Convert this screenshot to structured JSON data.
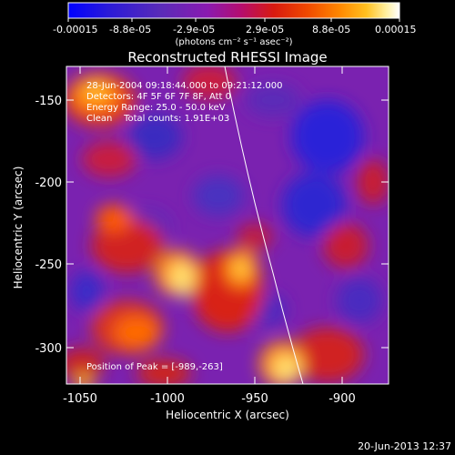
{
  "colorbar": {
    "tick_labels": [
      "-0.00015",
      "-8.8e-05",
      "-2.9e-05",
      "2.9e-05",
      "8.8e-05",
      "0.00015"
    ],
    "unit_label": "(photons cm⁻² s⁻¹ asec⁻²)",
    "colors": [
      "#0000ff",
      "#2a1ad8",
      "#5a2bb8",
      "#8a1ab0",
      "#b40d70",
      "#d81a10",
      "#f04800",
      "#ff8800",
      "#ffc020",
      "#fff0a0",
      "#ffffff"
    ]
  },
  "plot": {
    "title": "Reconstructed RHESSI Image",
    "info_lines": [
      "28-Jun-2004 09:18:44.000 to 09:21:12.000",
      "Detectors: 4F 5F 6F 7F 8F, Att 0",
      "Energy Range: 25.0 - 50.0 keV",
      "Clean    Total counts: 1.91E+03"
    ],
    "peak_text": "Position of Peak = [-989,-263]",
    "xlabel": "Heliocentric X (arcsec)",
    "ylabel": "Heliocentric Y (arcsec)",
    "x_ticks": [
      "-1050",
      "-1000",
      "-950",
      "-900"
    ],
    "y_ticks": [
      "-150",
      "-200",
      "-250",
      "-300"
    ],
    "xlim": [
      -1062,
      -877
    ],
    "ylim": [
      -323,
      -127
    ]
  },
  "footer": {
    "timestamp": "20-Jun-2013 12:37"
  }
}
